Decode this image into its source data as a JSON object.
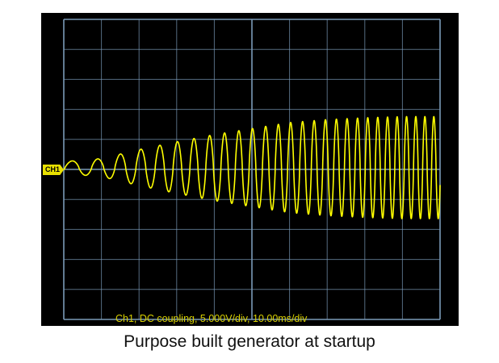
{
  "caption": "Purpose built generator at startup",
  "channel_marker": "CH1",
  "status_text": "Ch1, DC coupling, 5.000V/div, 10.00ms/div",
  "colors": {
    "background": "#000000",
    "grid": "#7a9ab8",
    "trace": "#ffff00",
    "page": "#ffffff"
  },
  "chart_data": {
    "type": "line",
    "title": "",
    "grid": true,
    "divisions": {
      "x": 10,
      "y": 10
    },
    "volts_per_div": 5.0,
    "time_per_div_ms": 10.0,
    "xlim_ms": [
      0,
      100
    ],
    "ylim_v": [
      -25,
      25
    ],
    "series": [
      {
        "description_points": "envelope",
        "t_ms": [
          0,
          10,
          20,
          30,
          40,
          50,
          60,
          70,
          80,
          90,
          100
        ],
        "peak_amplitude_v": [
          1.0,
          1.5,
          3.0,
          4.3,
          5.5,
          6.5,
          7.5,
          8.0,
          8.3,
          8.5,
          8.5
        ],
        "frequency_hz": [
          130,
          160,
          190,
          220,
          250,
          280,
          310,
          340,
          370,
          400,
          430
        ]
      }
    ]
  }
}
